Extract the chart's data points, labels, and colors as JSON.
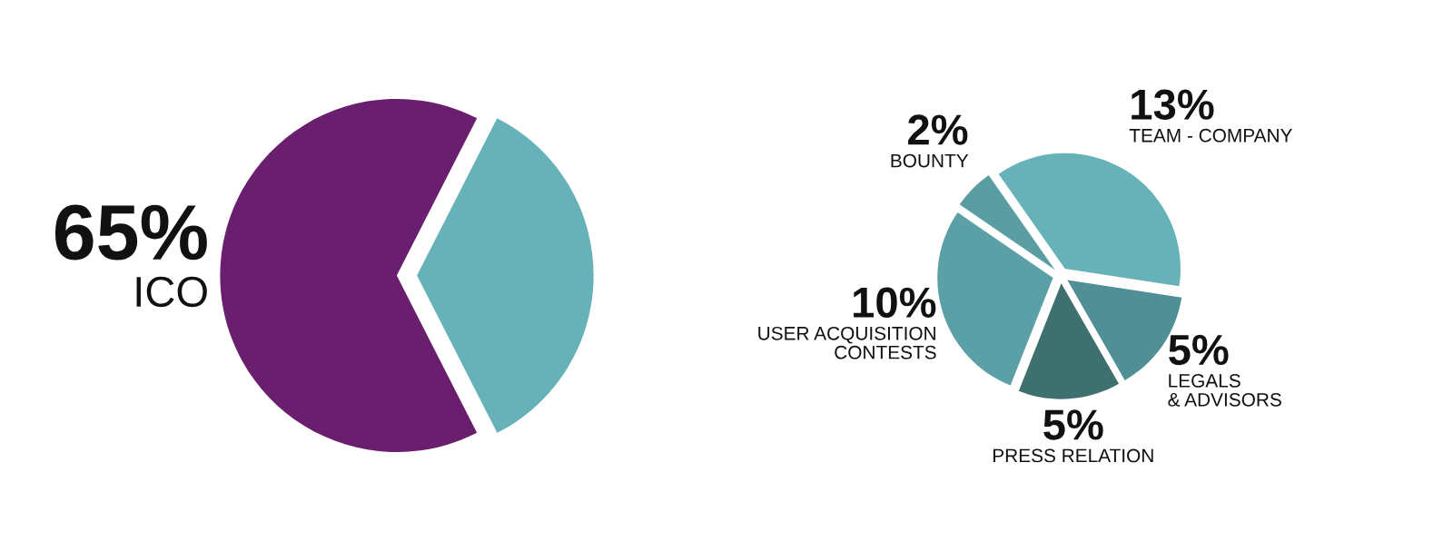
{
  "chart_data": [
    {
      "type": "pie",
      "categories": [
        "ICO",
        null
      ],
      "values": [
        65,
        35
      ],
      "colors": [
        "#6a1f6e",
        "#66b2b8"
      ],
      "value_labels": [
        "65%",
        null
      ]
    },
    {
      "type": "pie",
      "categories": [
        "TEAM - COMPANY",
        "LEGALS\n& ADVISORS",
        "PRESS RELATION",
        "USER ACQUISITION\nCONTESTS",
        "BOUNTY"
      ],
      "values": [
        13,
        5,
        5,
        10,
        2
      ],
      "colors": [
        "#66b2b8",
        "#4f8f95",
        "#3f7070",
        "#5ba0a6",
        "#5a9ea4"
      ],
      "value_labels": [
        "13%",
        "5%",
        "5%",
        "10%",
        "2%"
      ]
    }
  ]
}
